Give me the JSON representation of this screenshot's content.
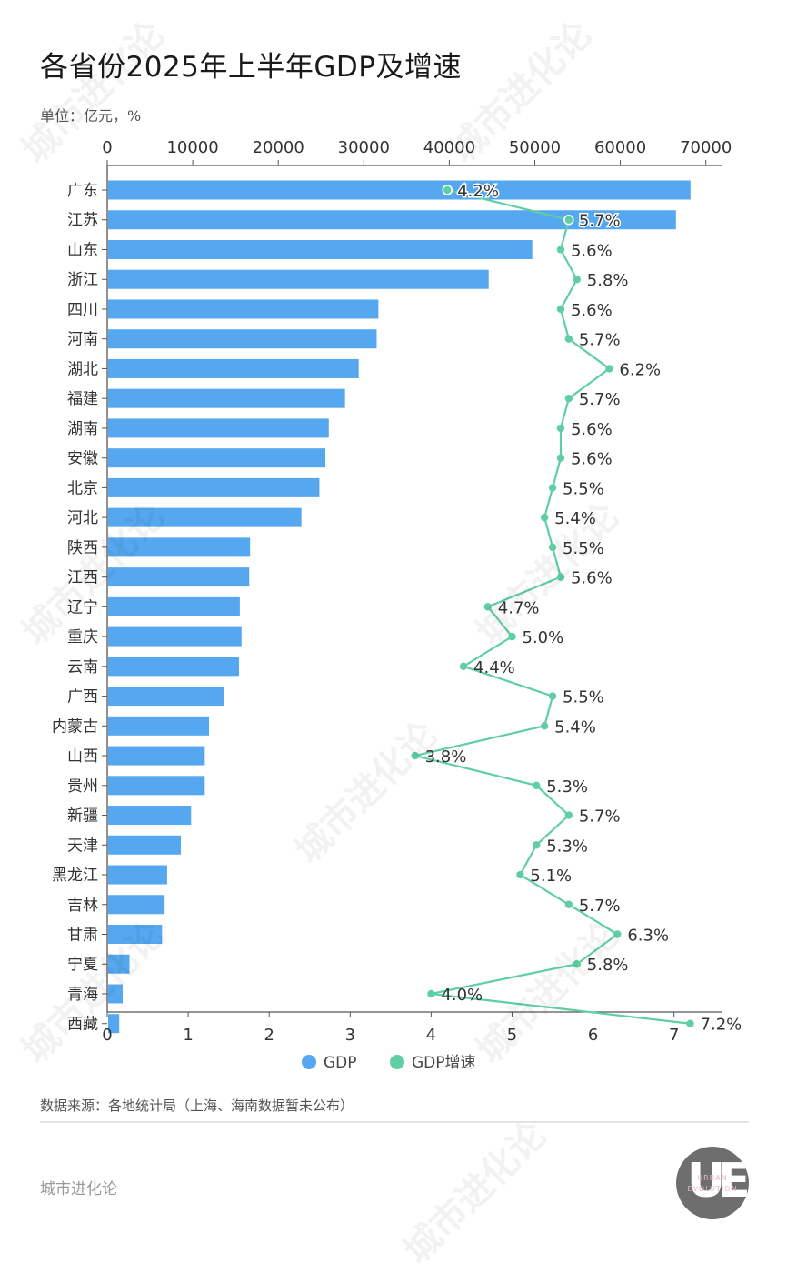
{
  "header": {
    "title": "各省份2025年上半年GDP及增速",
    "unit": "单位：亿元，%"
  },
  "footer": {
    "source": "数据来源：各地统计局（上海、海南数据暂未公布）",
    "brand": "城市进化论",
    "logo_text": "UE",
    "logo_sub1": "URBAN",
    "logo_sub2": "EVOLUTION"
  },
  "watermark": "城市进化论",
  "colors": {
    "gdp": "#55a8f0",
    "growth": "#5fcfa3",
    "axis": "#555555",
    "label": "#333333"
  },
  "chart_data": {
    "type": "bar+line",
    "title": "各省份2025年上半年GDP及增速",
    "subtitle": "单位：亿元，%",
    "categories": [
      "广东",
      "江苏",
      "山东",
      "浙江",
      "四川",
      "河南",
      "湖北",
      "福建",
      "湖南",
      "安徽",
      "北京",
      "河北",
      "陕西",
      "江西",
      "辽宁",
      "重庆",
      "云南",
      "广西",
      "内蒙古",
      "山西",
      "贵州",
      "新疆",
      "天津",
      "黑龙江",
      "吉林",
      "甘肃",
      "宁夏",
      "青海",
      "西藏"
    ],
    "series": [
      {
        "name": "GDP",
        "type": "bar",
        "axis": "top",
        "values": [
          68100,
          66400,
          49600,
          44500,
          31600,
          31400,
          29300,
          27700,
          25800,
          25400,
          24700,
          22600,
          16600,
          16500,
          15400,
          15600,
          15300,
          13600,
          11800,
          11300,
          11300,
          9700,
          8500,
          6900,
          6600,
          6300,
          2500,
          1700,
          1300
        ]
      },
      {
        "name": "GDP增速",
        "type": "line",
        "axis": "bottom",
        "values": [
          4.2,
          5.7,
          5.6,
          5.8,
          5.6,
          5.7,
          6.2,
          5.7,
          5.6,
          5.6,
          5.5,
          5.4,
          5.5,
          5.6,
          4.7,
          5.0,
          4.4,
          5.5,
          5.4,
          3.8,
          5.3,
          5.7,
          5.3,
          5.1,
          5.7,
          6.3,
          5.8,
          4.0,
          7.2
        ],
        "labels": [
          "4.2%",
          "5.7%",
          "5.6%",
          "5.8%",
          "5.6%",
          "5.7%",
          "6.2%",
          "5.7%",
          "5.6%",
          "5.6%",
          "5.5%",
          "5.4%",
          "5.5%",
          "5.6%",
          "4.7%",
          "5.0%",
          "4.4%",
          "5.5%",
          "5.4%",
          "3.8%",
          "5.3%",
          "5.7%",
          "5.3%",
          "5.1%",
          "5.7%",
          "6.3%",
          "5.8%",
          "4.0%",
          "7.2%"
        ]
      }
    ],
    "top_axis": {
      "ticks": [
        "0",
        "10000",
        "20000",
        "30000",
        "40000",
        "50000",
        "60000",
        "70000"
      ],
      "range": [
        0,
        72000
      ]
    },
    "bottom_axis": {
      "ticks": [
        "0",
        "1",
        "2",
        "3",
        "4",
        "5",
        "6",
        "7"
      ],
      "range": [
        0,
        7.55
      ]
    },
    "legend": [
      {
        "label": "GDP",
        "color": "#55a8f0"
      },
      {
        "label": "GDP增速",
        "color": "#5fcfa3"
      }
    ],
    "legend_position": "bottom",
    "grid": false
  }
}
